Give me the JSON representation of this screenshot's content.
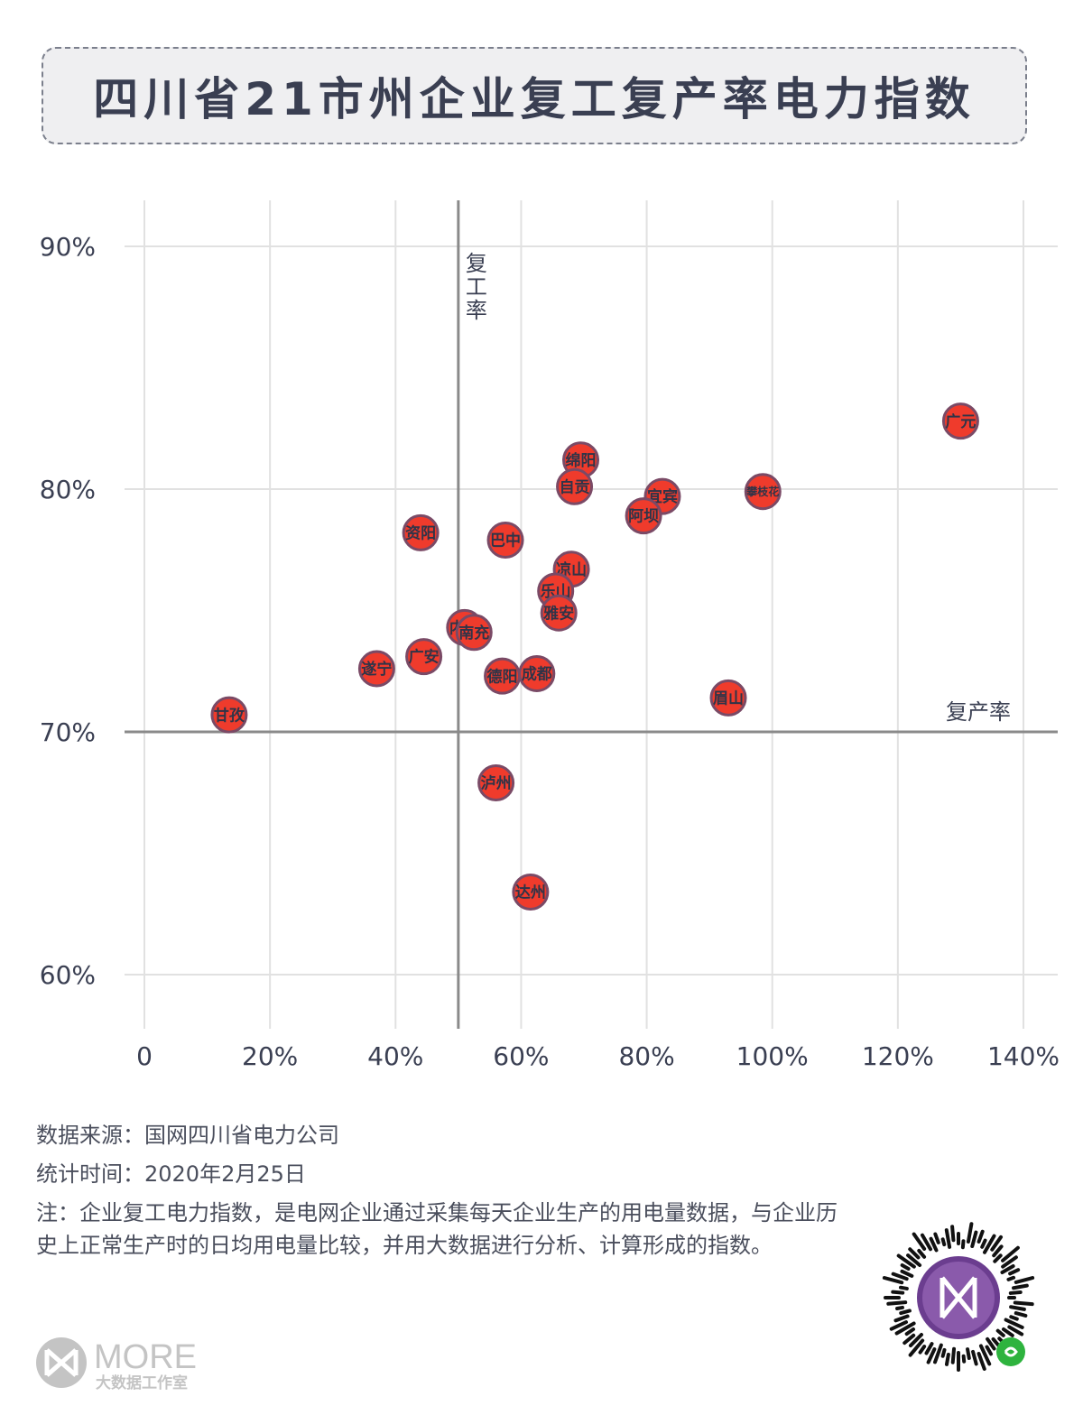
{
  "title": "四川省21市州企业复工复产率电力指数",
  "chart_data": {
    "type": "scatter",
    "xlabel": "复产率",
    "ylabel": "复工率",
    "xlim": [
      0,
      145
    ],
    "ylim": [
      58,
      92
    ],
    "x_ticks": [
      0,
      20,
      40,
      60,
      80,
      100,
      120,
      140
    ],
    "x_tick_labels": [
      "0",
      "20%",
      "40%",
      "60%",
      "80%",
      "100%",
      "120%",
      "140%"
    ],
    "y_ticks": [
      60,
      70,
      80,
      90
    ],
    "y_tick_labels": [
      "60%",
      "70%",
      "80%",
      "90%"
    ],
    "ref_x": 50,
    "ref_y": 70,
    "point_color": "#ef3b2c",
    "point_border": "#7a4a66",
    "points": [
      {
        "name": "广元",
        "x": 130,
        "y": 82.8
      },
      {
        "name": "绵阳",
        "x": 69.5,
        "y": 81.2
      },
      {
        "name": "自贡",
        "x": 68.5,
        "y": 80.1
      },
      {
        "name": "宜宾",
        "x": 82.5,
        "y": 79.7
      },
      {
        "name": "攀枝花",
        "x": 98.5,
        "y": 79.9
      },
      {
        "name": "阿坝",
        "x": 79.5,
        "y": 78.9
      },
      {
        "name": "资阳",
        "x": 44,
        "y": 78.2
      },
      {
        "name": "巴中",
        "x": 57.5,
        "y": 77.9
      },
      {
        "name": "凉山",
        "x": 68,
        "y": 76.7
      },
      {
        "name": "乐山",
        "x": 65.5,
        "y": 75.8
      },
      {
        "name": "雅安",
        "x": 66,
        "y": 74.9
      },
      {
        "name": "内江",
        "x": 51,
        "y": 74.3
      },
      {
        "name": "南充",
        "x": 52.5,
        "y": 74.1
      },
      {
        "name": "广安",
        "x": 44.5,
        "y": 73.1
      },
      {
        "name": "遂宁",
        "x": 37,
        "y": 72.6
      },
      {
        "name": "成都",
        "x": 62.5,
        "y": 72.4
      },
      {
        "name": "德阳",
        "x": 57,
        "y": 72.3
      },
      {
        "name": "眉山",
        "x": 93,
        "y": 71.4
      },
      {
        "name": "甘孜",
        "x": 13.5,
        "y": 70.7
      },
      {
        "name": "泸州",
        "x": 56,
        "y": 67.9
      },
      {
        "name": "达州",
        "x": 61.5,
        "y": 63.4
      }
    ]
  },
  "footer": {
    "source": "数据来源：国网四川省电力公司",
    "time": "统计时间：2020年2月25日",
    "note": "注：企业复工电力指数，是电网企业通过采集每天企业生产的用电量数据，与企业历史上正常生产时的日均用电量比较，并用大数据进行分析、计算形成的指数。"
  },
  "logo": {
    "main": "MORE",
    "sub": "大数据工作室"
  }
}
